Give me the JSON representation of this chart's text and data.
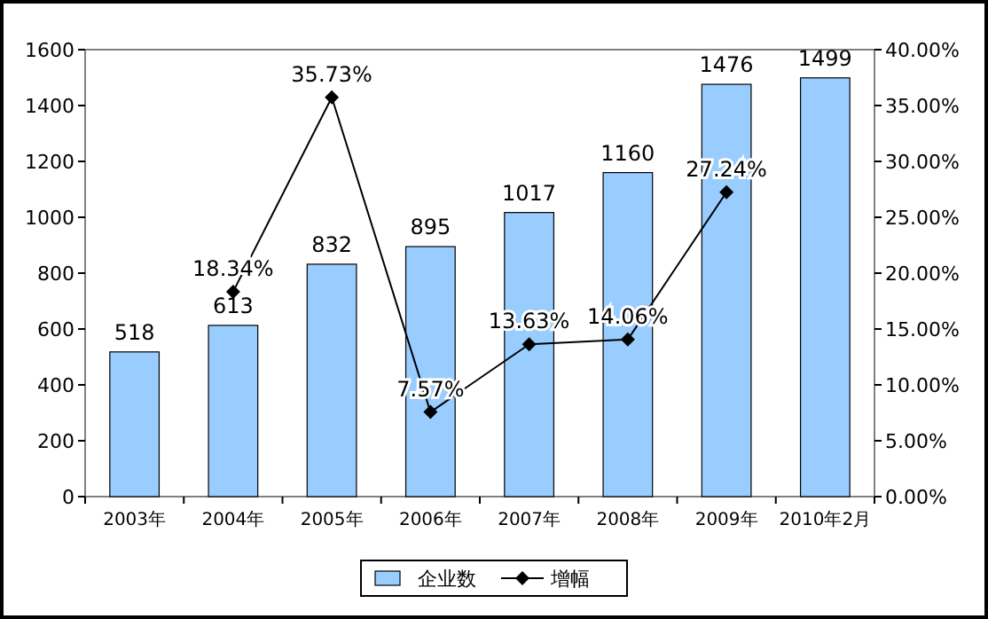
{
  "chart_data": {
    "type": "bar",
    "categories": [
      "2003年",
      "2004年",
      "2005年",
      "2006年",
      "2007年",
      "2008年",
      "2009年",
      "2010年2月"
    ],
    "series": [
      {
        "name": "企业数",
        "color": "#99ccff",
        "values": [
          518,
          613,
          832,
          895,
          1017,
          1160,
          1476,
          1499
        ],
        "value_labels": [
          "518",
          "613",
          "832",
          "895",
          "1017",
          "1160",
          "1476",
          "1499"
        ]
      },
      {
        "name": "增幅",
        "type": "line",
        "axis": "y2",
        "color": "#000000",
        "marker": "diamond",
        "values": [
          null,
          18.34,
          35.73,
          7.57,
          13.63,
          14.06,
          27.24,
          null
        ],
        "value_labels": [
          null,
          "18.34%",
          "35.73%",
          "7.57%",
          "13.63%",
          "14.06%",
          "27.24%",
          null
        ]
      }
    ],
    "ylim": [
      0,
      1600
    ],
    "yticks": [
      0,
      200,
      400,
      600,
      800,
      1000,
      1200,
      1400,
      1600
    ],
    "y2lim": [
      0,
      40
    ],
    "y2ticks": [
      {
        "value": 0,
        "label": "0.00%"
      },
      {
        "value": 5,
        "label": "5.00%"
      },
      {
        "value": 10,
        "label": "10.00%"
      },
      {
        "value": 15,
        "label": "15.00%"
      },
      {
        "value": 20,
        "label": "20.00%"
      },
      {
        "value": 25,
        "label": "25.00%"
      },
      {
        "value": 30,
        "label": "30.00%"
      },
      {
        "value": 35,
        "label": "35.00%"
      },
      {
        "value": 40,
        "label": "40.00%"
      }
    ],
    "grid": false,
    "legend": "bottom"
  }
}
